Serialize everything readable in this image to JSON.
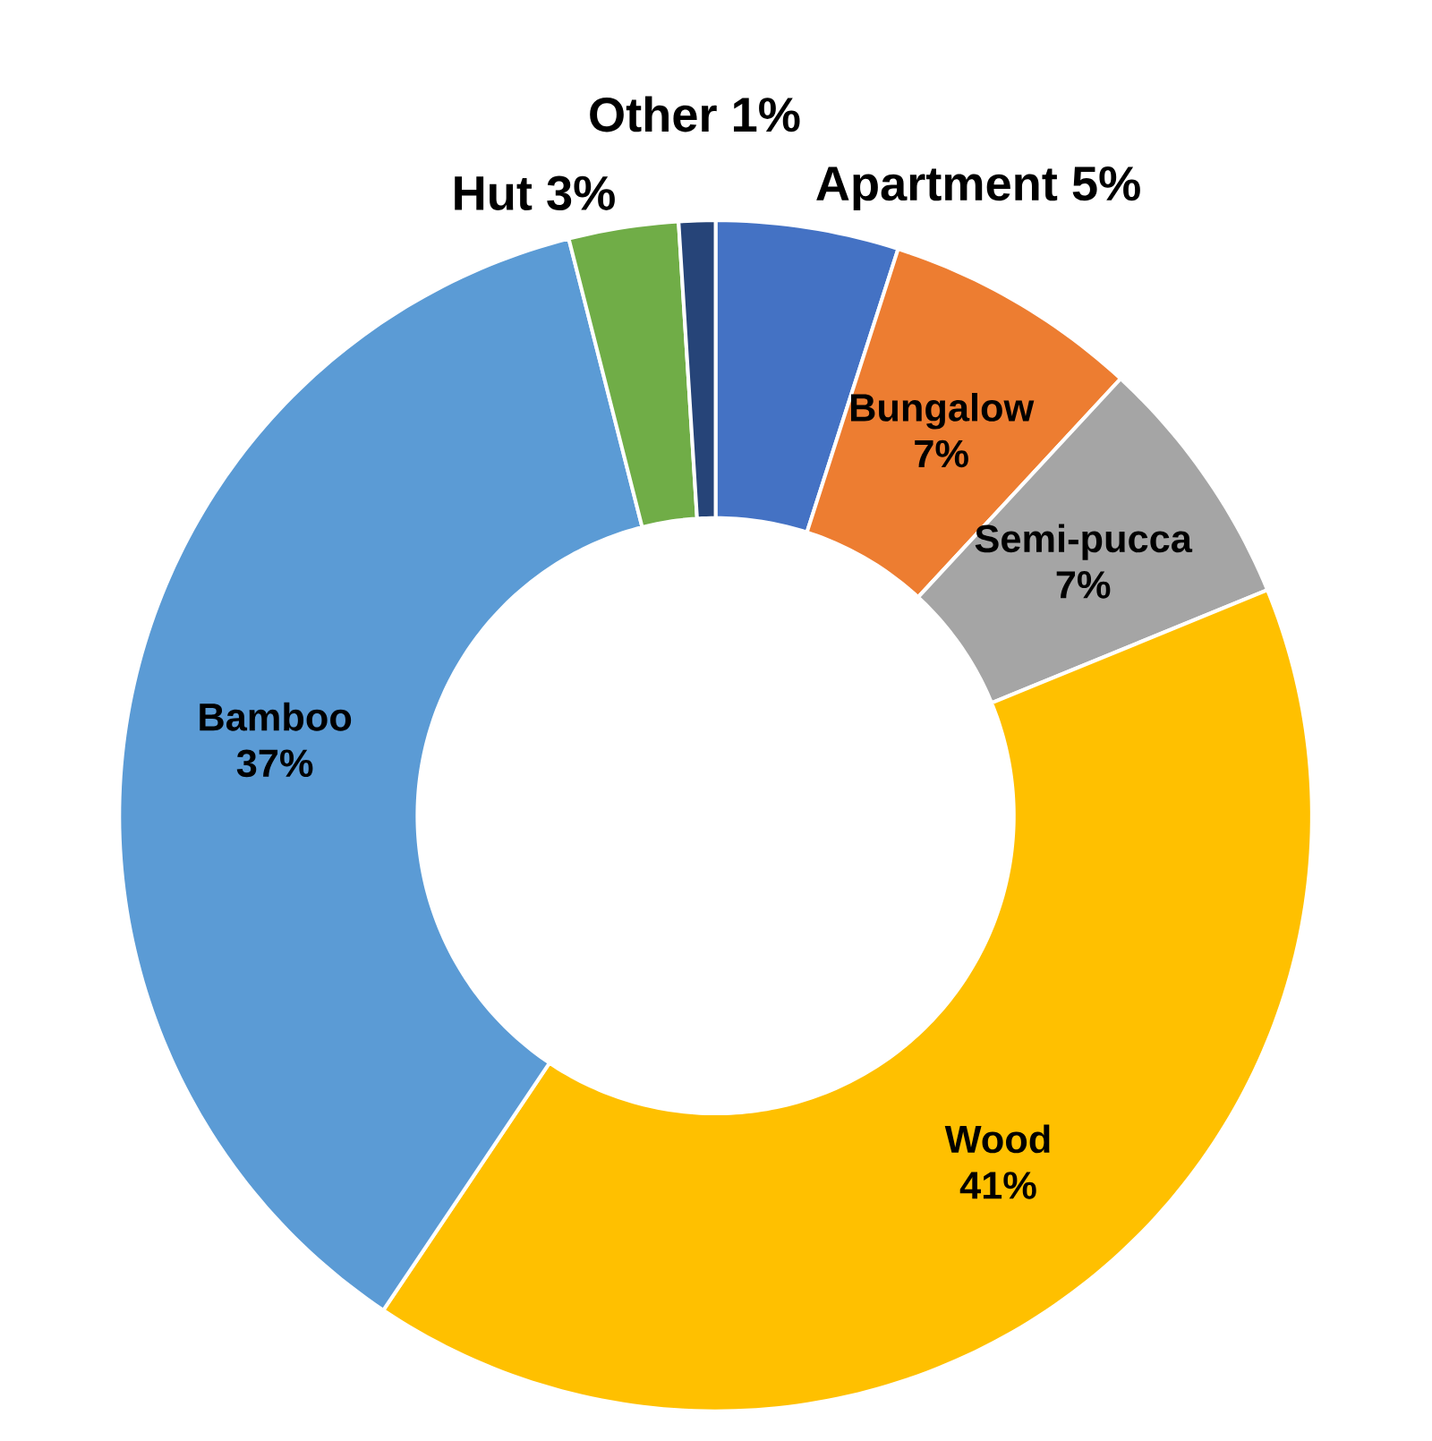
{
  "chart_data": {
    "type": "donut",
    "categories": [
      "Apartment",
      "Bungalow",
      "Semi-pucca",
      "Wood",
      "Bamboo",
      "Hut",
      "Other"
    ],
    "values": [
      5,
      7,
      7,
      41,
      37,
      3,
      1
    ],
    "value_labels": [
      "5%",
      "7%",
      "7%",
      "41%",
      "37%",
      "3%",
      "1%"
    ],
    "colors": [
      "#4472c4",
      "#ed7d31",
      "#a5a5a5",
      "#ffc000",
      "#5b9bd5",
      "#70ad47",
      "#264478"
    ]
  }
}
